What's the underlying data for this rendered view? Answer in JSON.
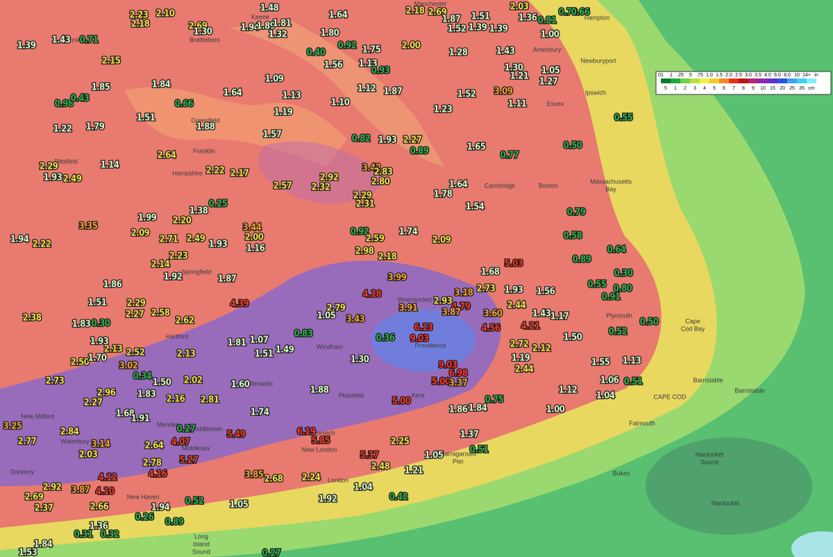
{
  "amounts": [
    "1.39",
    "1.43",
    "0.71",
    "2.23",
    "2.10",
    "2.18",
    "1.48",
    "2.69",
    "1.30",
    "1.94",
    "1.89",
    "1.81",
    "1.32",
    "1.64",
    "2.18",
    "2.69",
    "1.87",
    "1.51",
    "2.03",
    "1.36",
    "0.81",
    "0.70",
    "0.66",
    "1.52",
    "1.39",
    "1.39",
    "1.00",
    "2.00",
    "1.80",
    "0.92",
    "1.75",
    "0.40",
    "1.56",
    "1.13",
    "0.93",
    "2.15",
    "1.85",
    "0.98",
    "0.43",
    "1.84",
    "1.09",
    "1.64",
    "0.66",
    "1.13",
    "1.12",
    "1.87",
    "1.10",
    "1.19",
    "1.28",
    "1.43",
    "1.30",
    "1.05",
    "1.21",
    "1.27",
    "3.09",
    "1.11",
    "1.23",
    "1.52",
    "1.22",
    "1.79",
    "1.51",
    "1.88",
    "1.57",
    "0.82",
    "1.93",
    "2.27",
    "0.89",
    "1.65",
    "0.77",
    "0.50",
    "0.55",
    "2.29",
    "1.93",
    "2.49",
    "1.14",
    "2.64",
    "2.22",
    "2.17",
    "2.57",
    "2.32",
    "2.92",
    "3.42",
    "2.83",
    "2.80",
    "1.64",
    "1.78",
    "2.29",
    "2.31",
    "0.25",
    "1.38",
    "3.35",
    "1.99",
    "2.20",
    "2.09",
    "3.44",
    "2.00",
    "1.16",
    "2.71",
    "2.49",
    "1.93",
    "1.94",
    "2.22",
    "1.74",
    "2.09",
    "1.54",
    "0.92",
    "2.59",
    "2.98",
    "2.18",
    "0.79",
    "0.58",
    "0.89",
    "0.64",
    "0.30",
    "0.55",
    "0.80",
    "0.91",
    "0.50",
    "0.52",
    "1.13",
    "1.06",
    "1.04",
    "0.51",
    "1.55",
    "1.50",
    "1.17",
    "1.43",
    "1.56",
    "1.93",
    "1.68",
    "5.03",
    "2.44",
    "4.21",
    "4.56",
    "2.73",
    "3.18",
    "2.93",
    "4.79",
    "3.87",
    "3.60",
    "3.91",
    "4.18",
    "3.99",
    "2.79",
    "3.43",
    "1.05",
    "4.39",
    "6.13",
    "9.03",
    "0.36",
    "9.03",
    "6.98",
    "1.30",
    "5.00",
    "3.37",
    "5.00",
    "2.72",
    "2.12",
    "1.19",
    "2.44",
    "0.75",
    "1.86",
    "1.84",
    "1.12",
    "1.00",
    "1.37",
    "0.51",
    "1.05",
    "2.25",
    "1.21",
    "5.37",
    "2.48",
    "6.19",
    "5.85",
    "1.74",
    "1.88",
    "1.60",
    "5.49",
    "3.85",
    "2.68",
    "2.24",
    "1.04",
    "0.42",
    "1.92",
    "1.05",
    "0.52",
    "0.89",
    "1.36",
    "0.32",
    "0.31",
    "0.26",
    "1.94",
    "2.66",
    "4.10",
    "3.87",
    "4.12",
    "4.16",
    "2.78",
    "5.27",
    "4.07",
    "2.64",
    "0.27",
    "3.14",
    "2.03",
    "2.77",
    "3.25",
    "2.84",
    "1.68",
    "1.91",
    "2.27",
    "2.73",
    "2.96",
    "1.83",
    "2.16",
    "2.81",
    "1.50",
    "2.02",
    "0.34",
    "3.02",
    "2.50",
    "1.70",
    "2.52",
    "2.13",
    "1.81",
    "1.07",
    "1.49",
    "0.83",
    "1.51",
    "1.83",
    "0.30",
    "1.93",
    "2.13",
    "2.38",
    "1.51",
    "2.29",
    "2.27",
    "2.58",
    "2.62",
    "1.86",
    "1.92",
    "1.87",
    "2.14",
    "2.23",
    "2.92",
    "2.69",
    "2.37",
    "1.84",
    "1.53",
    "0.27"
  ],
  "places": [
    "Keene",
    "Brattleboro",
    "Bennington",
    "Manchester",
    "Hampton",
    "Amesbury",
    "Newburyport",
    "Ipswich",
    "Essex",
    "Greenfield",
    "Franklin",
    "Pittsfield",
    "Hampshire",
    "Cambridge",
    "Boston",
    "Massachusetts",
    "Bay",
    "Springfield",
    "Woonsocket",
    "Providence",
    "Hartford",
    "Windham",
    "Plainfield",
    "Willimantic",
    "Kent",
    "Plymouth",
    "Cape",
    "Cod Bay",
    "Barnstable",
    "Barnstable",
    "Falmouth",
    "CAPE COD",
    "Nantucket",
    "Sound",
    "Bukes",
    "Nantucket",
    "New Milford",
    "Waterbury",
    "Meriden",
    "Middletown",
    "Middlesex",
    "Norwich",
    "New London",
    "London",
    "Narragansett",
    "Pier",
    "New Haven",
    "Danbury",
    "Long",
    "Island",
    "Sound"
  ],
  "legend": {
    "in": [
      "01",
      ".1",
      ".25",
      ".5",
      ".75",
      "1.0",
      "1.5",
      "2.0",
      "2.5",
      "3.0",
      "3.5",
      "4.0",
      "6.0",
      "8.0",
      "10",
      "14+",
      "in"
    ],
    "cm": [
      "5",
      "1",
      "2",
      "3",
      "4",
      "5",
      "6",
      "7",
      "8",
      "9",
      "10",
      "15",
      "20",
      "25",
      "35",
      "cm"
    ]
  }
}
